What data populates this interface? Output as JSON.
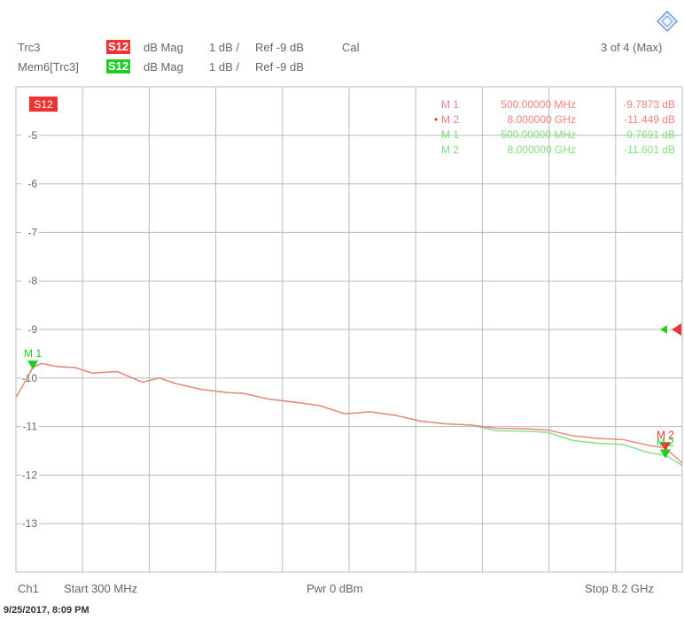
{
  "header": {
    "row1": {
      "trace": "Trc3",
      "badge": "S12",
      "format": "dB Mag",
      "scale": "1 dB /",
      "ref": "Ref -9 dB",
      "cal": "Cal",
      "count": "3 of 4 (Max)"
    },
    "row2": {
      "trace": "Mem6[Trc3]",
      "badge": "S12",
      "format": "dB Mag",
      "scale": "1 dB /",
      "ref": "Ref -9 dB"
    }
  },
  "colors": {
    "trace_red": "#f08080",
    "trace_green": "#7fe07f",
    "badge_red": "#ee3333",
    "badge_green": "#22cc22",
    "grid": "#bbbbbb"
  },
  "markers": {
    "red": [
      {
        "label": "M 1",
        "freq": "500.00000 MHz",
        "value": "-9.7873 dB",
        "active": false
      },
      {
        "label": "M 2",
        "freq": "8.000000 GHz",
        "value": "-11.449 dB",
        "active": true
      }
    ],
    "green": [
      {
        "label": "M 1",
        "freq": "500.00000 MHz",
        "value": "-9.7691 dB"
      },
      {
        "label": "M 2",
        "freq": "8.000000 GHz",
        "value": "-11.601 dB"
      }
    ]
  },
  "plot_badge": "S12",
  "footer": {
    "channel": "Ch1",
    "start": "Start 300 MHz",
    "power": "Pwr 0 dBm",
    "stop": "Stop 8.2 GHz"
  },
  "timestamp": "9/25/2017, 8:09 PM",
  "chart_data": {
    "type": "line",
    "xlabel": "",
    "ylabel": "",
    "x_unit": "GHz",
    "xlim": [
      0.3,
      8.2
    ],
    "ylim": [
      -14,
      -4
    ],
    "y_ticks": [
      -5,
      -6,
      -7,
      -8,
      -9,
      -10,
      -11,
      -12,
      -13
    ],
    "reference_level": -9,
    "grid": true,
    "series": [
      {
        "name": "Trc3",
        "color": "#f08080",
        "x": [
          0.3,
          0.4,
          0.5,
          0.6,
          0.8,
          1.0,
          1.2,
          1.5,
          1.8,
          2.0,
          2.2,
          2.5,
          2.8,
          3.0,
          3.3,
          3.6,
          3.9,
          4.2,
          4.5,
          4.8,
          5.1,
          5.4,
          5.7,
          6.0,
          6.3,
          6.6,
          6.9,
          7.2,
          7.5,
          7.8,
          8.0,
          8.2
        ],
        "y": [
          -10.4,
          -10.1,
          -9.79,
          -9.7,
          -9.8,
          -9.75,
          -9.9,
          -9.9,
          -10.05,
          -10.0,
          -10.15,
          -10.2,
          -10.3,
          -10.35,
          -10.4,
          -10.5,
          -10.6,
          -10.7,
          -10.7,
          -10.8,
          -10.85,
          -10.95,
          -11.0,
          -11.0,
          -11.05,
          -11.1,
          -11.15,
          -11.25,
          -11.3,
          -11.35,
          -11.45,
          -11.75
        ]
      },
      {
        "name": "Mem6[Trc3]",
        "color": "#7fe07f",
        "x": [
          0.3,
          0.4,
          0.5,
          0.6,
          0.8,
          1.0,
          1.2,
          1.5,
          1.8,
          2.0,
          2.2,
          2.5,
          2.8,
          3.0,
          3.3,
          3.6,
          3.9,
          4.2,
          4.5,
          4.8,
          5.1,
          5.4,
          5.7,
          6.0,
          6.3,
          6.6,
          6.9,
          7.2,
          7.5,
          7.8,
          8.0,
          8.2
        ],
        "y": [
          -10.4,
          -10.1,
          -9.77,
          -9.7,
          -9.8,
          -9.75,
          -9.9,
          -9.9,
          -10.05,
          -10.0,
          -10.15,
          -10.2,
          -10.3,
          -10.35,
          -10.4,
          -10.5,
          -10.6,
          -10.7,
          -10.7,
          -10.8,
          -10.85,
          -10.95,
          -11.0,
          -11.05,
          -11.1,
          -11.15,
          -11.25,
          -11.35,
          -11.4,
          -11.5,
          -11.6,
          -11.8
        ]
      }
    ],
    "marker_points": [
      {
        "label": "M 1",
        "x": 0.5,
        "y": -9.7691,
        "color": "#22cc22"
      },
      {
        "label": "M 2",
        "x": 8.0,
        "y": -11.449,
        "color": "#ee3333"
      },
      {
        "label": "M 2",
        "x": 8.0,
        "y": -11.601,
        "color": "#22cc22"
      }
    ]
  }
}
